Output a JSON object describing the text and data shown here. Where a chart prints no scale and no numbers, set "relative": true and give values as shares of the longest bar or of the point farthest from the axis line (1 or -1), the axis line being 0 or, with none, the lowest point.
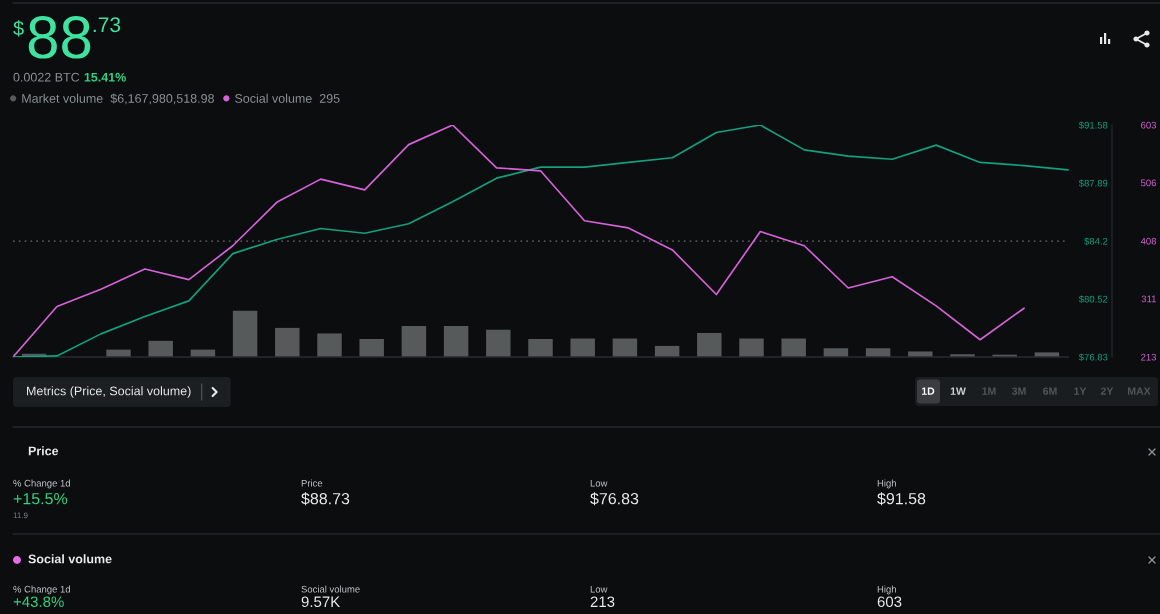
{
  "chart_data": [
    {
      "type": "other",
      "annotations": [
        "$",
        "88",
        ".73",
        "0.0022 BTC",
        "15.41%"
      ]
    },
    {
      "type": "line",
      "categories": [
        null,
        null,
        null,
        null,
        null,
        null,
        null,
        null,
        null,
        null,
        null,
        null,
        null,
        null,
        null,
        null,
        null,
        null,
        null,
        null,
        null,
        null,
        null,
        null,
        null
      ],
      "series": [
        {
          "color": "#12a07e",
          "values": [
            76.83,
            76.9,
            78.3,
            79.4,
            80.4,
            83.4,
            84.3,
            85.0,
            84.7,
            85.3,
            86.7,
            88.2,
            88.9,
            88.9,
            89.2,
            89.5,
            91.1,
            91.58,
            90.0,
            89.6,
            89.4,
            90.3,
            89.2,
            89.0,
            88.73
          ]
        },
        {
          "name": "Social volume",
          "color": "#d562d8",
          "axis": "y2",
          "values": [
            213,
            298,
            327,
            361,
            343,
            400,
            473,
            512,
            494,
            570,
            603,
            531,
            526,
            442,
            430,
            393,
            318,
            424,
            400,
            329,
            348,
            299,
            242,
            295,
            null
          ]
        }
      ],
      "ylim": [
        76.83,
        91.58
      ],
      "yticks": [
        {
          "value": 76.83,
          "label": "$76.83"
        },
        {
          "value": 80.52,
          "label": "$80.52"
        },
        {
          "value": 84.2,
          "label": "$84.2"
        },
        {
          "value": 87.89,
          "label": "$87.89"
        },
        {
          "value": 91.58,
          "label": "$91.58"
        }
      ],
      "y2lim": [
        213,
        603
      ],
      "y2ticks": [
        213,
        311,
        408,
        506,
        603
      ],
      "ref_lines": [
        {
          "axis": "y",
          "value": 84.2,
          "color": "#6b6f72",
          "line_style": "dotted"
        }
      ],
      "legend": "top left",
      "annotations": [
        "295"
      ]
    },
    {
      "type": "bar",
      "relative": true,
      "categories": [
        null,
        null,
        null,
        null,
        null,
        null,
        null,
        null,
        null,
        null,
        null,
        null,
        null,
        null,
        null,
        null,
        null,
        null,
        null,
        null,
        null,
        null,
        null,
        null,
        null
      ],
      "series": [
        {
          "name": "Market volume",
          "color": "#565a5b",
          "values": [
            0.07,
            null,
            0.16,
            0.35,
            0.16,
            1,
            0.63,
            0.51,
            0.39,
            0.67,
            0.67,
            0.59,
            0.39,
            0.4,
            0.4,
            0.24,
            0.52,
            0.4,
            0.4,
            0.19,
            0.19,
            0.12,
            0.06,
            0.05,
            0.1
          ]
        }
      ],
      "legend": "top left",
      "annotations": [
        "$6,167,980,518.98"
      ]
    },
    {
      "type": "other",
      "annotations": [
        "Metrics (Price, Social volume)",
        "1D",
        "1W",
        "1M",
        "3M",
        "6M",
        "1Y",
        "2Y",
        "MAX"
      ]
    },
    {
      "type": "other",
      "title": "Price",
      "annotations": [
        "% Change 1d",
        "+15.5%",
        "11.9",
        "Price",
        "$88.73",
        "Low",
        "$76.83",
        "High",
        "$91.58"
      ]
    },
    {
      "type": "other",
      "title": "Social volume",
      "annotations": [
        "% Change 1d",
        "+43.8%",
        "Social volume",
        "9.57K",
        "Low",
        "213",
        "High",
        "603"
      ]
    }
  ]
}
